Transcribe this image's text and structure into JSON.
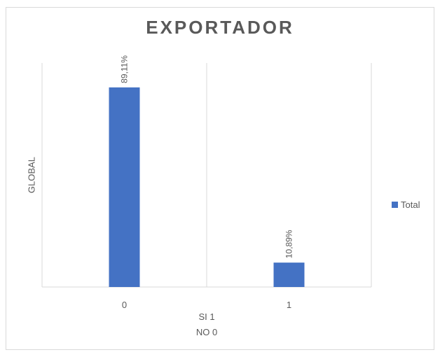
{
  "chart_data": {
    "type": "bar",
    "title": "EXPORTADOR",
    "ylabel": "GLOBAL",
    "xlabel_lines": [
      "SI 1",
      "NO 0"
    ],
    "categories": [
      "0",
      "1"
    ],
    "series": [
      {
        "name": "Total",
        "values": [
          89.11,
          10.89
        ],
        "labels": [
          "89,11%",
          "10,89%"
        ]
      }
    ],
    "ylim": [
      0,
      100
    ],
    "grid": "vertical",
    "legend": "right",
    "colors": {
      "bar": "#4472C4",
      "axis": "#d9d9d9",
      "text": "#595959"
    }
  }
}
